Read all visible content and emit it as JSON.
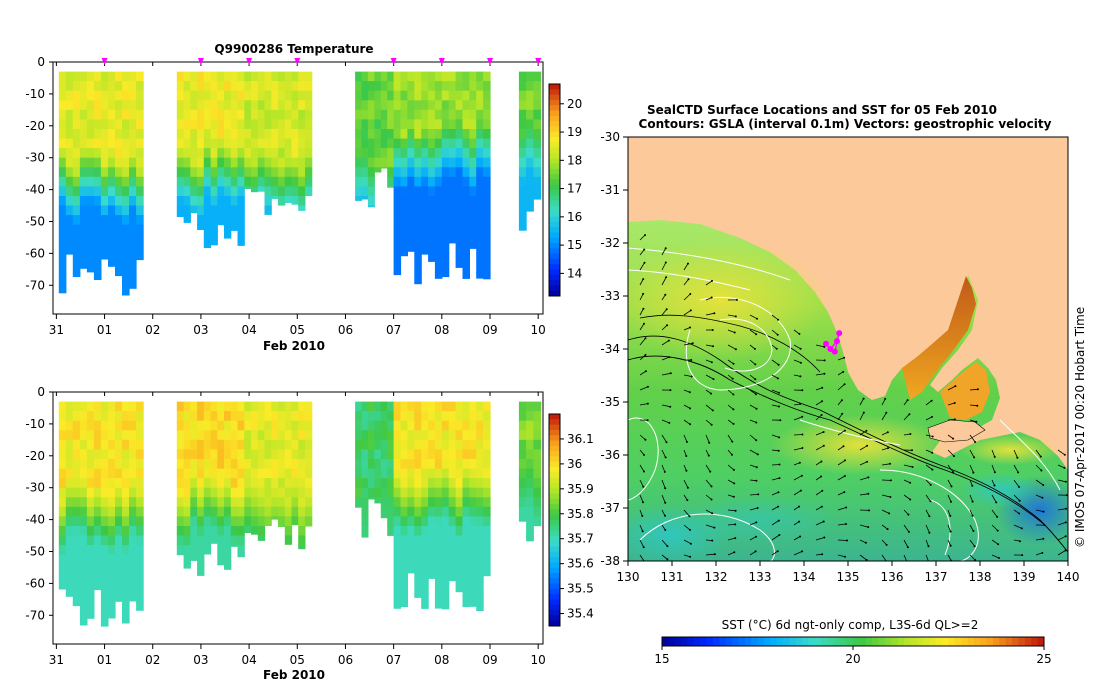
{
  "chart_data": [
    {
      "type": "heatmap",
      "id": "temperature-section",
      "title": "Q9900286  Temperature",
      "xlabel": "Feb 2010",
      "x_ticks": [
        "31",
        "01",
        "02",
        "03",
        "04",
        "05",
        "06",
        "07",
        "08",
        "09",
        "10"
      ],
      "ylim": [
        -80,
        0
      ],
      "y_ticks": [
        "0",
        "-10",
        "-20",
        "-30",
        "-40",
        "-50",
        "-60",
        "-70"
      ],
      "colorbar": {
        "min": 13.2,
        "max": 20.7,
        "ticks": [
          "14",
          "15",
          "16",
          "17",
          "18",
          "19",
          "20"
        ]
      },
      "profile_days": [
        0.0,
        1.65,
        2.5,
        5.3,
        6.2,
        9.1,
        9.6,
        10.05
      ],
      "profile_markers_days": [
        1.0,
        3.0,
        4.0,
        5.0,
        7.0,
        8.0,
        9.0,
        10.0
      ],
      "segments": [
        {
          "start": 0.05,
          "end": 1.8,
          "top": -3,
          "bottom": -65,
          "surface": 18.5,
          "deep": 15.0,
          "thermocline": -30
        },
        {
          "start": 2.5,
          "end": 3.9,
          "top": -3,
          "bottom": -50,
          "surface": 18.6,
          "deep": 15.4,
          "thermocline": -27
        },
        {
          "start": 3.9,
          "end": 5.3,
          "top": -3,
          "bottom": -45,
          "surface": 18.3,
          "deep": 15.6,
          "thermocline": -30
        },
        {
          "start": 6.2,
          "end": 7.0,
          "top": -3,
          "bottom": -38,
          "surface": 17.4,
          "deep": 15.5,
          "thermocline": -30
        },
        {
          "start": 7.0,
          "end": 9.0,
          "top": -3,
          "bottom": -62,
          "surface": 17.8,
          "deep": 14.8,
          "thermocline": -20
        },
        {
          "start": 9.6,
          "end": 10.05,
          "top": -3,
          "bottom": -45,
          "surface": 17.5,
          "deep": 15.5,
          "thermocline": -20
        }
      ]
    },
    {
      "type": "heatmap",
      "id": "salinity-section",
      "title": "",
      "xlabel": "Feb 2010",
      "x_ticks": [
        "31",
        "01",
        "02",
        "03",
        "04",
        "05",
        "06",
        "07",
        "08",
        "09",
        "10"
      ],
      "ylim": [
        -80,
        0
      ],
      "y_ticks": [
        "0",
        "-10",
        "-20",
        "-30",
        "-40",
        "-50",
        "-60",
        "-70"
      ],
      "colorbar": {
        "min": 35.35,
        "max": 36.2,
        "ticks": [
          "35.4",
          "35.5",
          "35.6",
          "35.7",
          "35.8",
          "35.9",
          "36",
          "36.1"
        ]
      },
      "segments": [
        {
          "start": 0.05,
          "end": 1.8,
          "top": -3,
          "bottom": -65,
          "surface": 35.98,
          "deep": 35.7,
          "thermocline": -30
        },
        {
          "start": 2.5,
          "end": 3.9,
          "top": -3,
          "bottom": -50,
          "surface": 36.0,
          "deep": 35.72,
          "thermocline": -27
        },
        {
          "start": 3.9,
          "end": 5.3,
          "top": -3,
          "bottom": -45,
          "surface": 35.95,
          "deep": 35.75,
          "thermocline": -30
        },
        {
          "start": 6.2,
          "end": 7.0,
          "top": -3,
          "bottom": -38,
          "surface": 35.77,
          "deep": 35.74,
          "thermocline": -30
        },
        {
          "start": 7.0,
          "end": 9.0,
          "top": -3,
          "bottom": -62,
          "surface": 35.98,
          "deep": 35.7,
          "thermocline": -25
        },
        {
          "start": 9.6,
          "end": 10.05,
          "top": -3,
          "bottom": -45,
          "surface": 35.85,
          "deep": 35.72,
          "thermocline": -20
        }
      ]
    },
    {
      "type": "heatmap",
      "id": "sst-map",
      "title": "SealCTD Surface Locations and SST for 05 Feb 2010",
      "subtitle": "Contours: GSLA (interval 0.1m) Vectors: geostrophic velocity",
      "xlim": [
        130,
        140
      ],
      "ylim": [
        -38,
        -30
      ],
      "x_ticks": [
        "130",
        "131",
        "132",
        "133",
        "134",
        "135",
        "136",
        "137",
        "138",
        "139",
        "140"
      ],
      "y_ticks": [
        "-30",
        "-31",
        "-32",
        "-33",
        "-34",
        "-35",
        "-36",
        "-37",
        "-38"
      ],
      "colorbar": {
        "label": "SST (°C) 6d ngt-only comp, L3S-6d QL>=2",
        "min": 15,
        "max": 25,
        "ticks": [
          "15",
          "20",
          "25"
        ]
      },
      "seal_locations": [
        [
          134.5,
          -33.9
        ],
        [
          134.6,
          -34.0
        ],
        [
          134.75,
          -33.85
        ],
        [
          134.8,
          -33.7
        ],
        [
          134.7,
          -34.05
        ]
      ],
      "timestamp_label": "© IMOS 07-Apr-2017 00:20 Hobart Time"
    }
  ],
  "colors": {
    "land": "#fcc99a",
    "seal_marker": "#ff00ff",
    "contour": "#ffffff",
    "vector": "#000000"
  }
}
